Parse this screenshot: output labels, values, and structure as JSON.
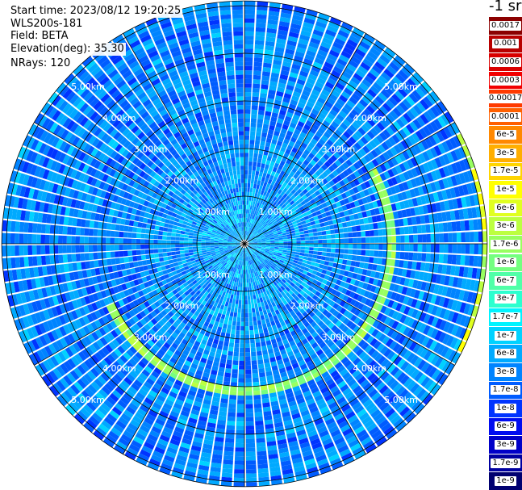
{
  "header": {
    "start_time": "Start time: 2023/08/12 19:20:25",
    "instrument": "WLS200s-181",
    "field": "Field: BETA",
    "elevation": "Elevation(deg): 35.30",
    "nrays": "NRays: 120"
  },
  "colorbar": {
    "unit": "-1 sr",
    "levels": [
      {
        "label": "0.0017",
        "color": "#8b0000"
      },
      {
        "label": "0.001",
        "color": "#b80000"
      },
      {
        "label": "0.0006",
        "color": "#d90000"
      },
      {
        "label": "0.0003",
        "color": "#f20000"
      },
      {
        "label": "0.00017",
        "color": "#ff3a00"
      },
      {
        "label": "0.0001",
        "color": "#ff6000"
      },
      {
        "label": "6e-5",
        "color": "#ff8800"
      },
      {
        "label": "3e-5",
        "color": "#ffae00"
      },
      {
        "label": "1.7e-5",
        "color": "#ffd500"
      },
      {
        "label": "1e-5",
        "color": "#ffff00"
      },
      {
        "label": "6e-6",
        "color": "#e0ff20"
      },
      {
        "label": "3e-6",
        "color": "#bcff40"
      },
      {
        "label": "1.7e-6",
        "color": "#98ff60"
      },
      {
        "label": "1e-6",
        "color": "#74ff80"
      },
      {
        "label": "6e-7",
        "color": "#50ffa8"
      },
      {
        "label": "3e-7",
        "color": "#2cffcf"
      },
      {
        "label": "1.7e-7",
        "color": "#00f4ff"
      },
      {
        "label": "1e-7",
        "color": "#00d2ff"
      },
      {
        "label": "6e-8",
        "color": "#00aaff"
      },
      {
        "label": "3e-8",
        "color": "#0084ff"
      },
      {
        "label": "1.7e-8",
        "color": "#005cff"
      },
      {
        "label": "1e-8",
        "color": "#0034ff"
      },
      {
        "label": "6e-9",
        "color": "#000cf0"
      },
      {
        "label": "3e-9",
        "color": "#0000c8"
      },
      {
        "label": "1.7e-9",
        "color": "#0000a0"
      },
      {
        "label": "1e-9",
        "color": "#000070"
      }
    ]
  },
  "chart_data": {
    "type": "heatmap",
    "projection": "polar (PPI scan)",
    "field": "BETA",
    "elevation_deg": 35.3,
    "n_rays": 120,
    "range_rings_km": [
      1,
      2,
      3,
      4,
      5
    ],
    "range_ring_labels": [
      "1.00km",
      "2.00km",
      "3.00km",
      "4.00km",
      "5.00km"
    ],
    "max_range_km": 5.1,
    "spoke_count": 12,
    "background_beta": "3e-8",
    "near_field_beta": "1e-7",
    "aerosol_arc": {
      "range_km": 3.1,
      "azimuth_span_deg": [
        60,
        245
      ],
      "beta_peak": "3e-6"
    },
    "outer_arc": {
      "range_km": 5.1,
      "azimuth_span_deg": [
        62,
        118
      ],
      "beta_peak": "1e-5"
    },
    "colorscale": "log"
  }
}
